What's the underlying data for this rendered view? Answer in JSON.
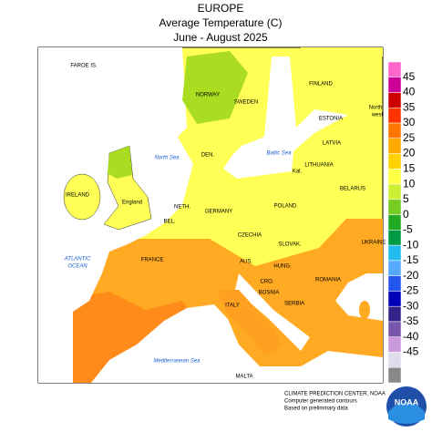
{
  "title": {
    "lines": [
      "EUROPE",
      "Average Temperature (C)",
      "June - August 2025"
    ]
  },
  "legend": {
    "levels": [
      45,
      40,
      35,
      30,
      25,
      20,
      15,
      10,
      5,
      0,
      -5,
      -10,
      -15,
      -20,
      -25,
      -30,
      -35,
      -40,
      -45
    ],
    "colors": [
      "#ff66cc",
      "#cc0099",
      "#cc0000",
      "#ff3300",
      "#ff7700",
      "#ffaa00",
      "#ffd200",
      "#ffff44",
      "#ccee33",
      "#77cc22",
      "#22aa22",
      "#009944",
      "#22bbee",
      "#55aaff",
      "#2255ee",
      "#0000bb",
      "#332288",
      "#7755aa",
      "#cc99dd",
      "#ddddee",
      "#888888"
    ]
  },
  "labels": [
    "FAROE IS.",
    "NORWAY",
    "SWEDEN",
    "FINLAND",
    "ESTONIA",
    "North",
    "west",
    "LATVIA",
    "DEN.",
    "LITHUANIA",
    "Kal.",
    "IRELAND",
    "England",
    "NETH.",
    "POLAND",
    "BELARUS",
    "GERMANY",
    "BEL.",
    "CZECHIA",
    "UKRAINE",
    "SLOVAK.",
    "FRANCE",
    "AUS.",
    "HUNG.",
    "ROMANIA",
    "CRO.",
    "BOSNIA",
    "SERBIA",
    "ITALY",
    "MALTA"
  ],
  "seas": [
    "North Sea",
    "Baltic Sea",
    "ATLANTIC",
    "OCEAN",
    "Mediterranean Sea"
  ],
  "footer": [
    "CLIMATE PREDICTION CENTER, NOAA",
    "Computer generated contours",
    "Based on preliminary data"
  ],
  "logo": "NOAA"
}
